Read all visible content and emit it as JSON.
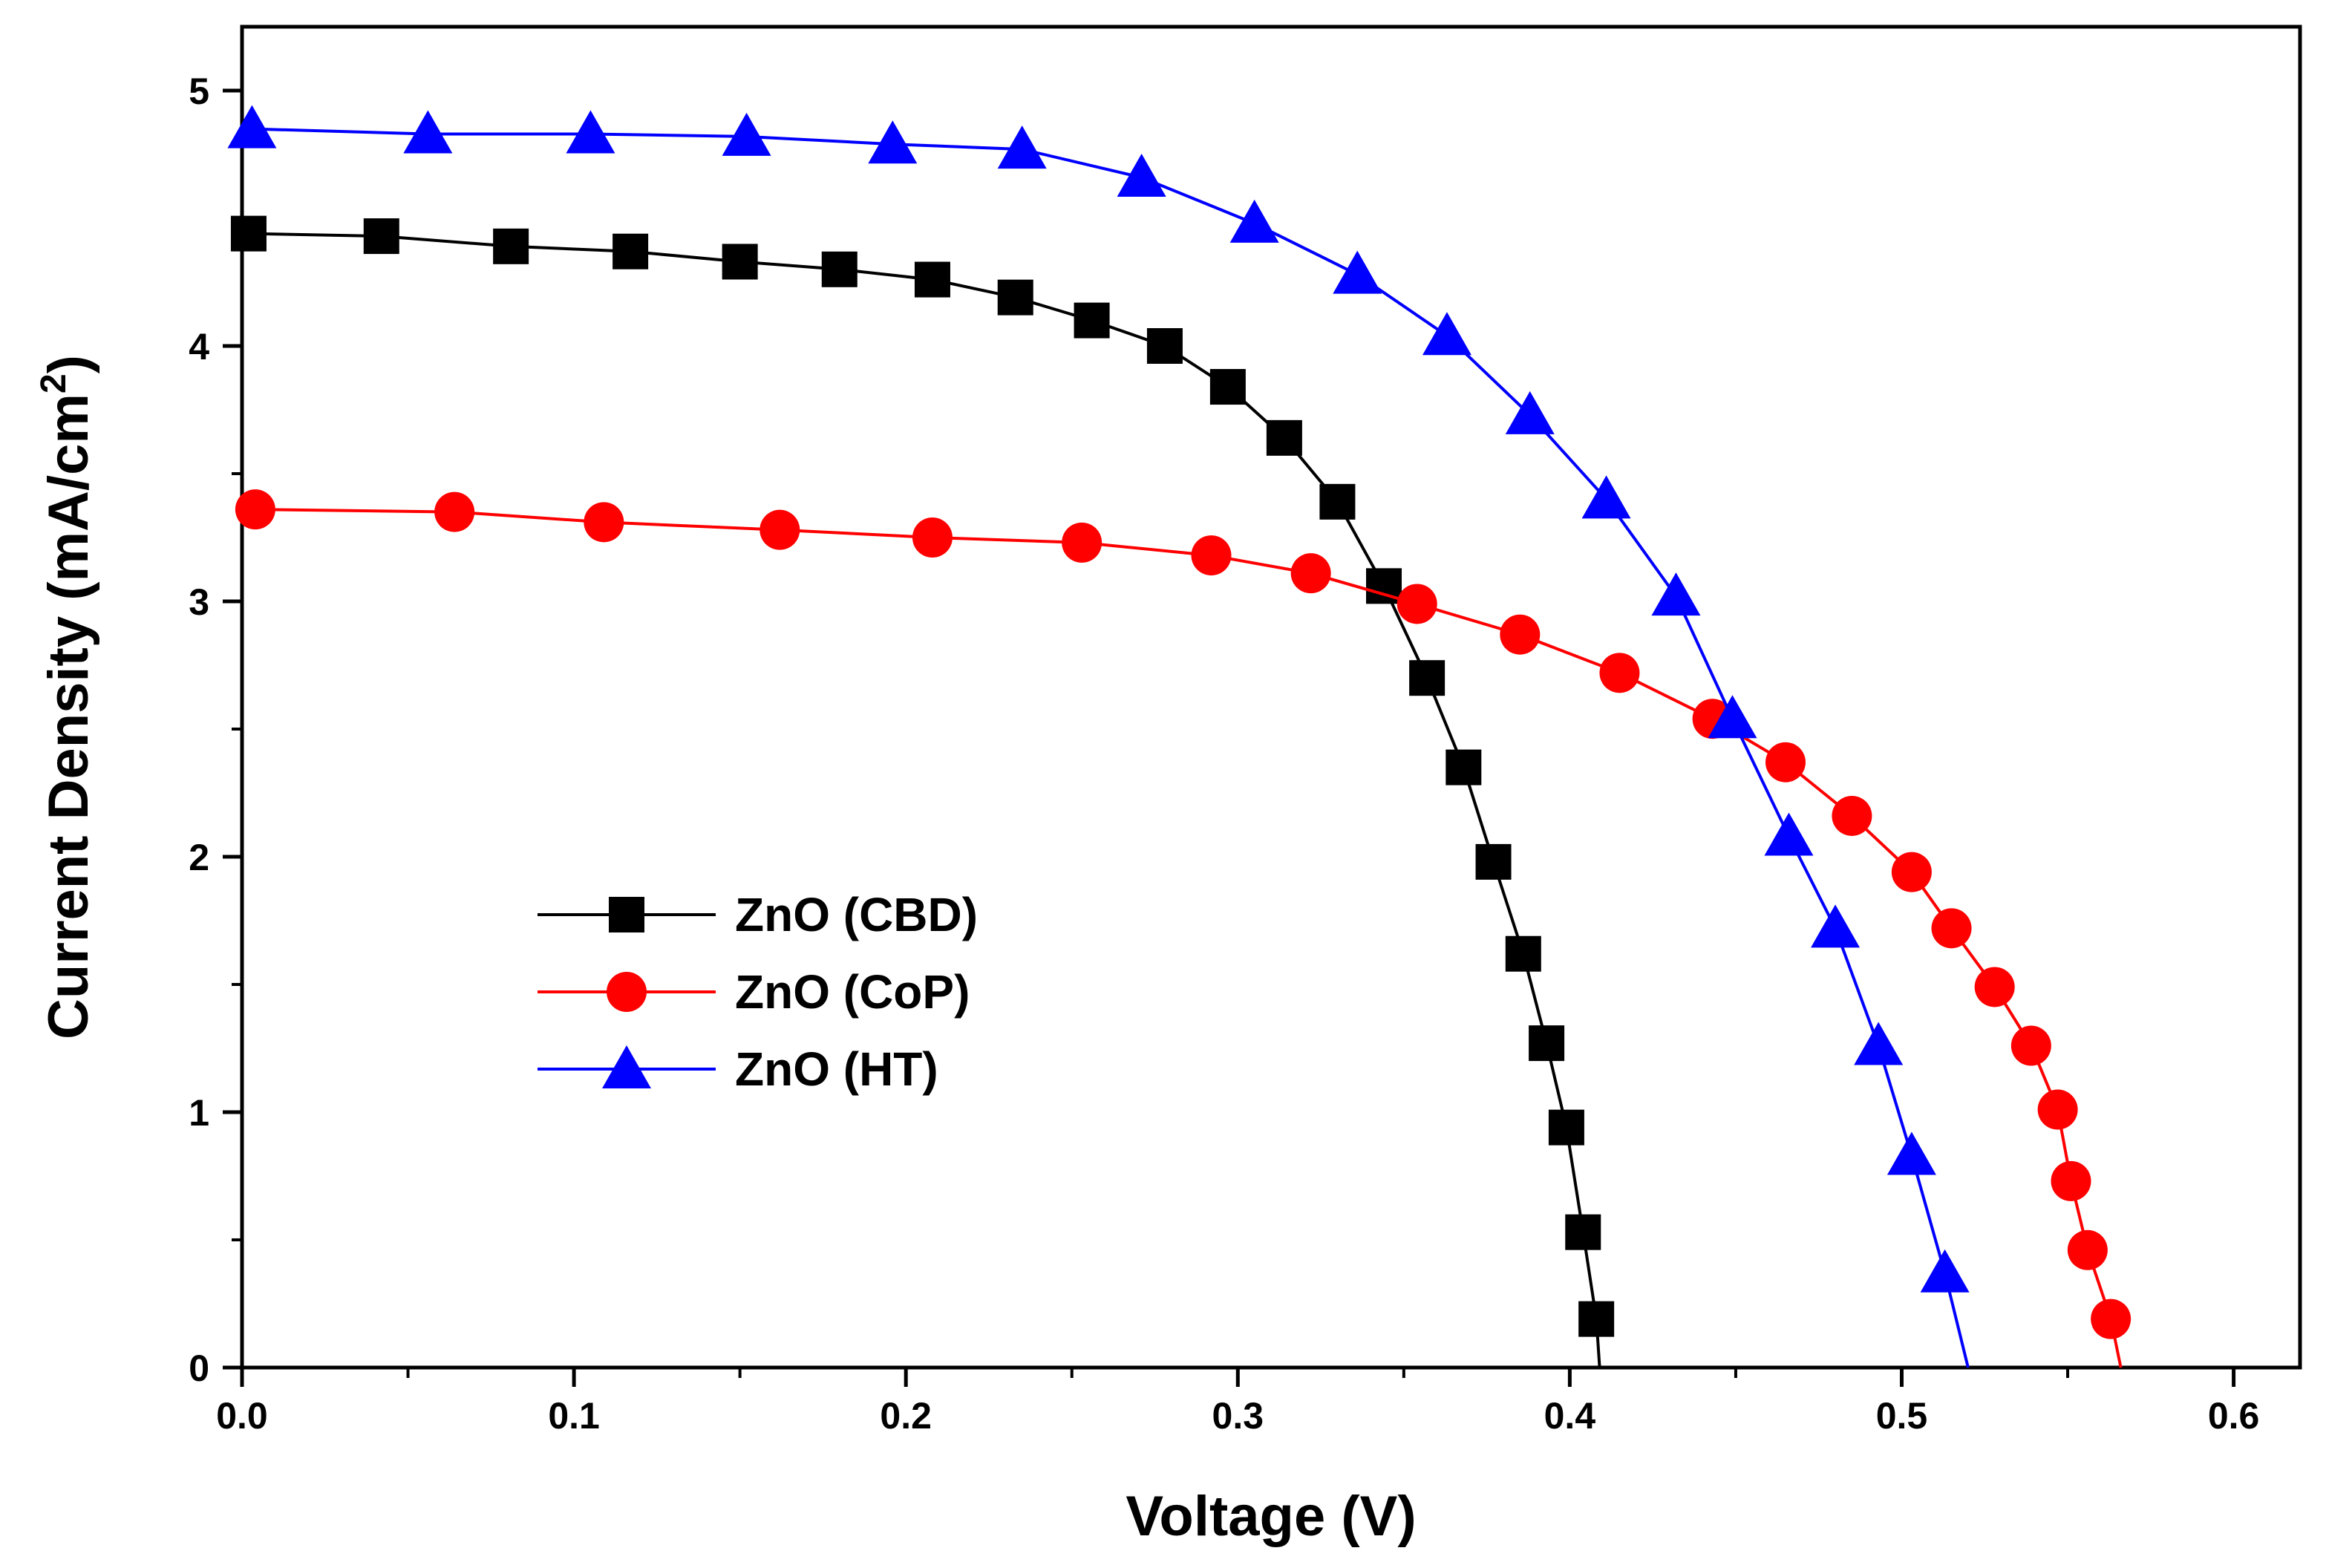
{
  "chart_data": {
    "type": "line",
    "title": "",
    "xlabel": "Voltage (V)",
    "ylabel": "Current Density (mA/cm",
    "ylabel_superscript": "2",
    "ylabel_suffix": ")",
    "xlim": [
      0.0,
      0.62
    ],
    "ylim": [
      0,
      5.25
    ],
    "x_ticks": [
      0.0,
      0.1,
      0.2,
      0.3,
      0.4,
      0.5,
      0.6
    ],
    "x_tick_labels": [
      "0.0",
      "0.1",
      "0.2",
      "0.3",
      "0.4",
      "0.5",
      "0.6"
    ],
    "y_ticks": [
      0,
      1,
      2,
      3,
      4,
      5
    ],
    "y_tick_labels": [
      "0",
      "1",
      "2",
      "3",
      "4",
      "5"
    ],
    "grid": false,
    "legend_position": "center-left",
    "series": [
      {
        "name": "ZnO (CBD)",
        "color": "#000000",
        "marker": "square",
        "points": [
          [
            0.002,
            4.44
          ],
          [
            0.042,
            4.43
          ],
          [
            0.081,
            4.39
          ],
          [
            0.117,
            4.37
          ],
          [
            0.15,
            4.33
          ],
          [
            0.18,
            4.3
          ],
          [
            0.208,
            4.26
          ],
          [
            0.233,
            4.19
          ],
          [
            0.256,
            4.1
          ],
          [
            0.278,
            4.0
          ],
          [
            0.297,
            3.84
          ],
          [
            0.314,
            3.64
          ],
          [
            0.33,
            3.39
          ],
          [
            0.344,
            3.06
          ],
          [
            0.357,
            2.7
          ],
          [
            0.368,
            2.35
          ],
          [
            0.377,
            1.98
          ],
          [
            0.386,
            1.62
          ],
          [
            0.393,
            1.27
          ],
          [
            0.399,
            0.94
          ],
          [
            0.404,
            0.53
          ],
          [
            0.408,
            0.19
          ],
          [
            0.409,
            0.0
          ]
        ],
        "marked_points": 22
      },
      {
        "name": "ZnO (CoP)",
        "color": "#ff0000",
        "marker": "circle",
        "points": [
          [
            0.004,
            3.36
          ],
          [
            0.064,
            3.35
          ],
          [
            0.109,
            3.31
          ],
          [
            0.162,
            3.28
          ],
          [
            0.208,
            3.25
          ],
          [
            0.253,
            3.23
          ],
          [
            0.292,
            3.18
          ],
          [
            0.322,
            3.11
          ],
          [
            0.354,
            2.99
          ],
          [
            0.385,
            2.87
          ],
          [
            0.415,
            2.72
          ],
          [
            0.443,
            2.54
          ],
          [
            0.465,
            2.37
          ],
          [
            0.485,
            2.16
          ],
          [
            0.503,
            1.94
          ],
          [
            0.515,
            1.72
          ],
          [
            0.528,
            1.49
          ],
          [
            0.539,
            1.26
          ],
          [
            0.547,
            1.01
          ],
          [
            0.551,
            0.73
          ],
          [
            0.556,
            0.46
          ],
          [
            0.563,
            0.19
          ],
          [
            0.566,
            0.0
          ]
        ],
        "marked_points": 22
      },
      {
        "name": "ZnO (HT)",
        "color": "#0000ff",
        "marker": "triangle",
        "points": [
          [
            0.003,
            4.85
          ],
          [
            0.056,
            4.83
          ],
          [
            0.105,
            4.83
          ],
          [
            0.152,
            4.82
          ],
          [
            0.196,
            4.79
          ],
          [
            0.235,
            4.77
          ],
          [
            0.271,
            4.66
          ],
          [
            0.305,
            4.48
          ],
          [
            0.336,
            4.28
          ],
          [
            0.363,
            4.04
          ],
          [
            0.388,
            3.73
          ],
          [
            0.411,
            3.4
          ],
          [
            0.432,
            3.02
          ],
          [
            0.449,
            2.54
          ],
          [
            0.466,
            2.08
          ],
          [
            0.48,
            1.72
          ],
          [
            0.493,
            1.26
          ],
          [
            0.503,
            0.83
          ],
          [
            0.513,
            0.37
          ],
          [
            0.52,
            0.0
          ]
        ],
        "marked_points": 19
      }
    ]
  }
}
